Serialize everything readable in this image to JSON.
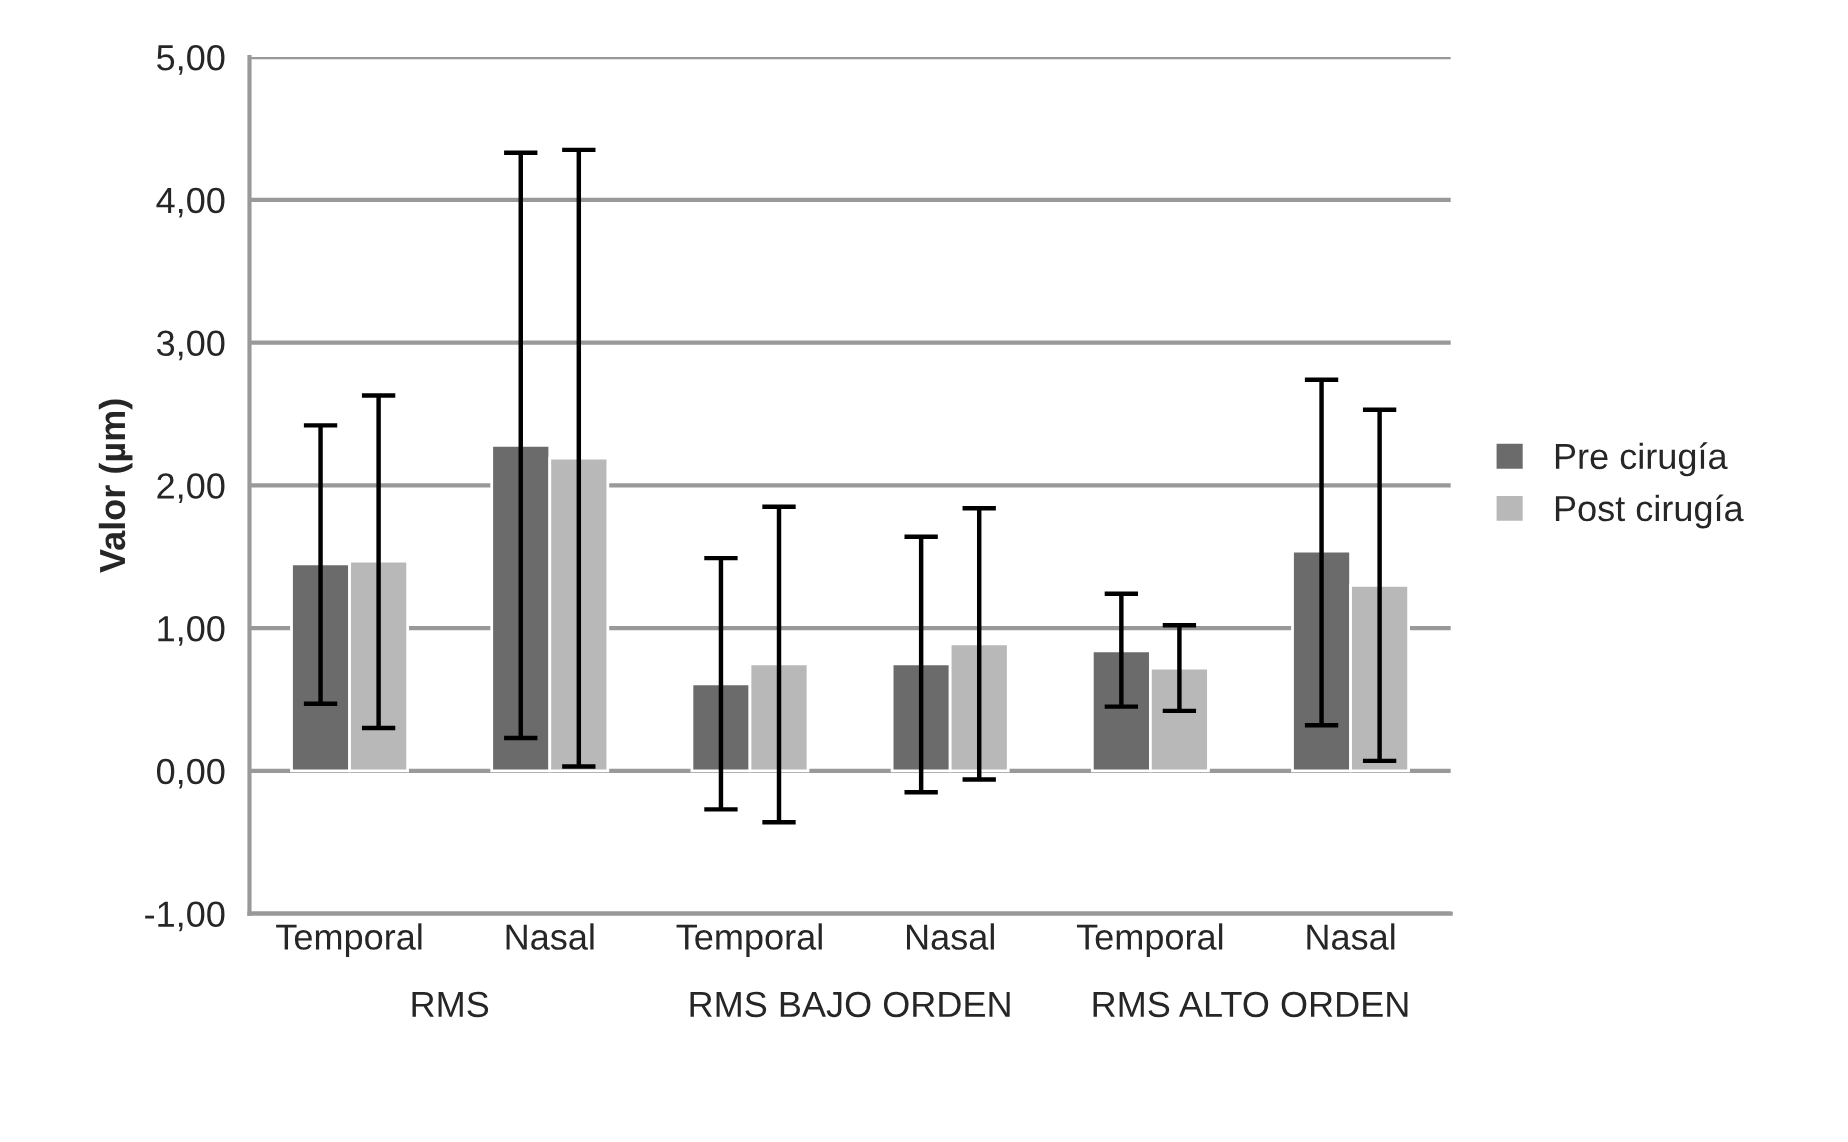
{
  "chart_data": {
    "type": "bar",
    "ylabel": "Valor (µm)",
    "categories": [
      "Temporal",
      "Nasal",
      "Temporal",
      "Nasal",
      "Temporal",
      "Nasal"
    ],
    "annotations": [
      "RMS",
      "RMS BAJO ORDEN",
      "RMS ALTO ORDEN"
    ],
    "series": [
      {
        "name": "Pre cirugía",
        "color": "#6b6b6b",
        "values": [
          1.45,
          2.28,
          0.61,
          0.75,
          0.84,
          1.54
        ],
        "errors": [
          [
            0.47,
            2.42
          ],
          [
            0.23,
            4.33
          ],
          [
            -0.27,
            1.49
          ],
          [
            -0.15,
            1.64
          ],
          [
            0.45,
            1.24
          ],
          [
            0.32,
            2.74
          ]
        ]
      },
      {
        "name": "Post cirugía",
        "color": "#b8b8b8",
        "values": [
          1.47,
          2.19,
          0.75,
          0.89,
          0.72,
          1.3
        ],
        "errors": [
          [
            0.3,
            2.63
          ],
          [
            0.03,
            4.35
          ],
          [
            -0.36,
            1.85
          ],
          [
            -0.06,
            1.84
          ],
          [
            0.42,
            1.02
          ],
          [
            0.07,
            2.53
          ]
        ]
      }
    ],
    "ylim": [
      -1,
      5
    ],
    "yticks": [
      {
        "value": -1,
        "label": "-1,00"
      },
      {
        "value": 0,
        "label": "0,00"
      },
      {
        "value": 1,
        "label": "1,00"
      },
      {
        "value": 2,
        "label": "2,00"
      },
      {
        "value": 3,
        "label": "3,00"
      },
      {
        "value": 4,
        "label": "4,00"
      },
      {
        "value": 5,
        "label": "5,00"
      }
    ],
    "grid": "y",
    "legend": "right"
  }
}
